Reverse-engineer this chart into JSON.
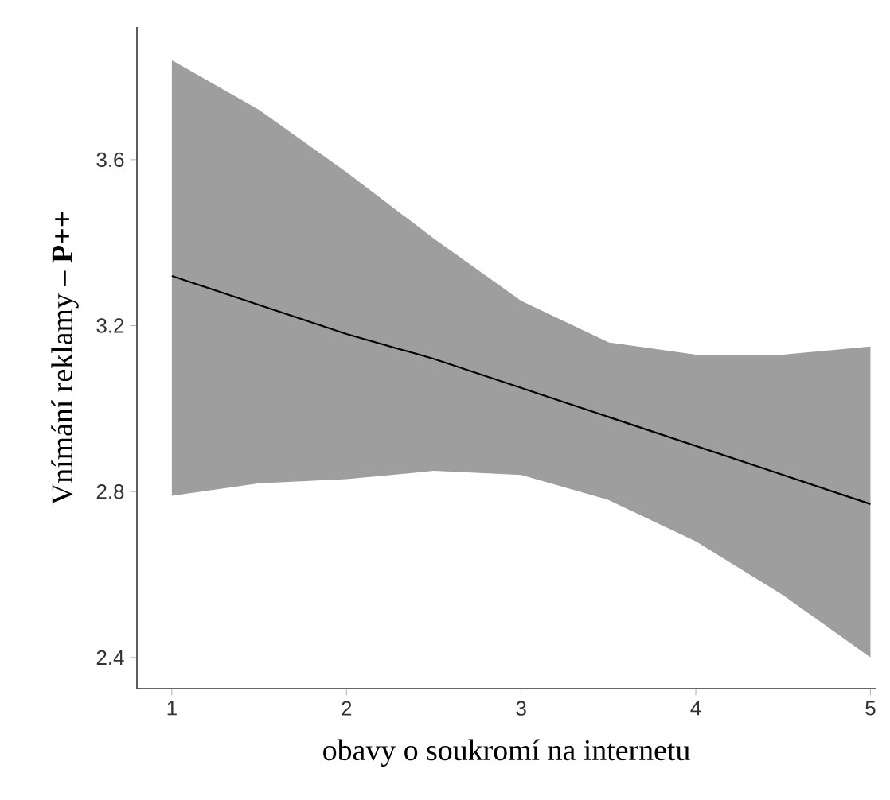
{
  "chart_data": {
    "type": "line",
    "xlabel": "obavy o soukromí na internetu",
    "ylabel": "Vnímání reklamy – **P++**",
    "x": [
      1,
      1.5,
      2,
      2.5,
      3,
      3.5,
      4,
      4.5,
      5
    ],
    "series": [
      {
        "color": "#000000",
        "values": [
          3.32,
          3.25,
          3.18,
          3.12,
          3.05,
          2.98,
          2.91,
          2.84,
          2.77
        ],
        "lower": [
          2.79,
          2.82,
          2.83,
          2.85,
          2.84,
          2.78,
          2.68,
          2.55,
          2.4
        ],
        "upper": [
          3.84,
          3.72,
          3.57,
          3.41,
          3.26,
          3.16,
          3.13,
          3.13,
          3.15
        ]
      }
    ],
    "xlim": [
      0.8,
      5.03
    ],
    "ylim": [
      2.325,
      3.92
    ],
    "xticks": [
      1,
      2,
      3,
      4,
      5
    ],
    "yticks": [
      2.4,
      2.8,
      3.2,
      3.6
    ]
  }
}
